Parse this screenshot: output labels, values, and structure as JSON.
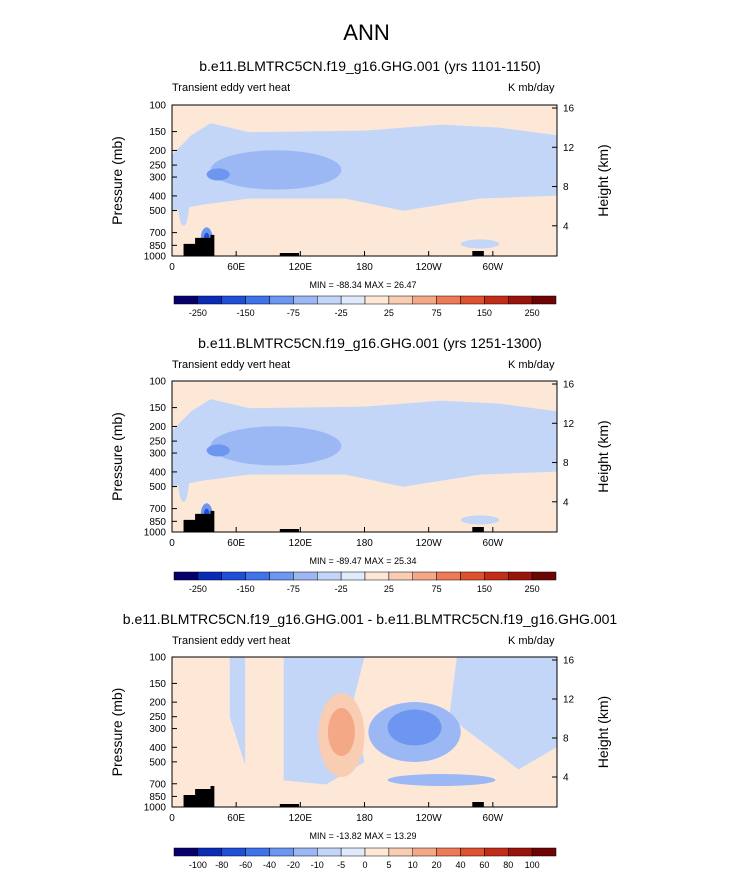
{
  "main_title": "ANN",
  "chart_data": [
    {
      "type": "heatmap",
      "title": "b.e11.BLMTRC5CN.f19_g16.GHG.001 (yrs 1101-1150)",
      "left_string": "Transient eddy vert heat",
      "right_string": "K mb/day",
      "xlabel": "",
      "ylabel": "Pressure (mb)",
      "ylabel_right": "Height (km)",
      "x_ticks": [
        "0",
        "60E",
        "120E",
        "180",
        "120W",
        "60W"
      ],
      "y_ticks": [
        "100",
        "150",
        "200",
        "250",
        "300",
        "400",
        "500",
        "700",
        "850",
        "1000"
      ],
      "y_right_ticks": [
        "16",
        "12",
        "8",
        "4"
      ],
      "stats": "MIN = -88.34   MAX = 26.47",
      "colorbar_labels": [
        "-250",
        "-150",
        "-75",
        "-25",
        "25",
        "75",
        "150",
        "250"
      ],
      "value_range": [
        -88.34,
        26.47
      ]
    },
    {
      "type": "heatmap",
      "title": "b.e11.BLMTRC5CN.f19_g16.GHG.001 (yrs 1251-1300)",
      "left_string": "Transient eddy vert heat",
      "right_string": "K mb/day",
      "xlabel": "",
      "ylabel": "Pressure (mb)",
      "ylabel_right": "Height (km)",
      "x_ticks": [
        "0",
        "60E",
        "120E",
        "180",
        "120W",
        "60W"
      ],
      "y_ticks": [
        "100",
        "150",
        "200",
        "250",
        "300",
        "400",
        "500",
        "700",
        "850",
        "1000"
      ],
      "y_right_ticks": [
        "16",
        "12",
        "8",
        "4"
      ],
      "stats": "MIN = -89.47   MAX = 25.34",
      "colorbar_labels": [
        "-250",
        "-150",
        "-75",
        "-25",
        "25",
        "75",
        "150",
        "250"
      ],
      "value_range": [
        -89.47,
        25.34
      ]
    },
    {
      "type": "heatmap",
      "title": "b.e11.BLMTRC5CN.f19_g16.GHG.001 - b.e11.BLMTRC5CN.f19_g16.GHG.001",
      "left_string": "Transient eddy vert heat",
      "right_string": "K mb/day",
      "xlabel": "",
      "ylabel": "Pressure (mb)",
      "ylabel_right": "Height (km)",
      "x_ticks": [
        "0",
        "60E",
        "120E",
        "180",
        "120W",
        "60W"
      ],
      "y_ticks": [
        "100",
        "150",
        "200",
        "250",
        "300",
        "400",
        "500",
        "700",
        "850",
        "1000"
      ],
      "y_right_ticks": [
        "16",
        "12",
        "8",
        "4"
      ],
      "stats": "MIN = -13.82   MAX = 13.29",
      "colorbar_labels": [
        "-100",
        "-80",
        "-60",
        "-40",
        "-20",
        "-10",
        "-5",
        "0",
        "5",
        "10",
        "20",
        "40",
        "60",
        "80",
        "100"
      ],
      "value_range": [
        -13.82,
        13.29
      ]
    }
  ],
  "colors": {
    "colorbar": [
      "#06006b",
      "#0a2bb8",
      "#1f4fd8",
      "#3f73ea",
      "#6d96f0",
      "#9cb8f4",
      "#c4d6f8",
      "#dfeafc",
      "#fde8d8",
      "#f8cdb2",
      "#f4a886",
      "#ee7a57",
      "#e0512f",
      "#c22d17",
      "#9b140b",
      "#6e0404"
    ],
    "land": "#000000"
  }
}
